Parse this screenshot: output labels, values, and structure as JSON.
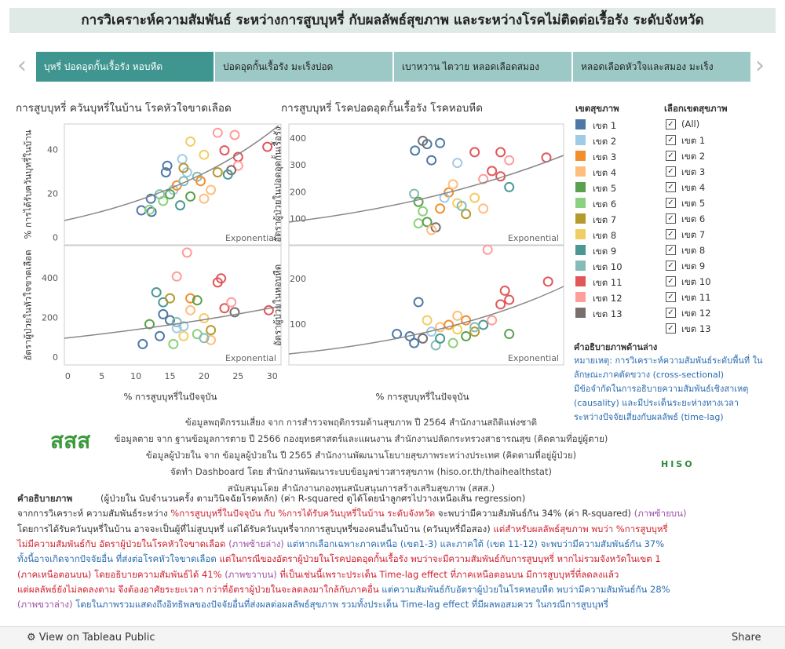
{
  "header": {
    "title": "การวิเคราะห์ความสัมพันธ์ ระหว่างการสูบบุหรี่ กับผลลัพธ์สุขภาพ และระหว่างโรคไม่ติดต่อเรื้อรัง ระดับจังหวัด"
  },
  "tabs": [
    "บุหรี่ ปอดอุดกั้นเรื้อรัง หอบหืด",
    "ปอดอุดกั้นเรื้อรัง มะเร็งปอด",
    "เบาหวาน ไตวาย หลอดเลือดสมอง",
    "หลอดเลือดหัวใจและสมอง มะเร็ง"
  ],
  "legend": {
    "title": "เขตสุขภาพ",
    "items": [
      {
        "name": "เขต 1",
        "color": "#4e79a7"
      },
      {
        "name": "เขต 2",
        "color": "#a0cbe8"
      },
      {
        "name": "เขต 3",
        "color": "#f28e2b"
      },
      {
        "name": "เขต 4",
        "color": "#ffbe7d"
      },
      {
        "name": "เขต 5",
        "color": "#59a14f"
      },
      {
        "name": "เขต 6",
        "color": "#8cd17d"
      },
      {
        "name": "เขต 7",
        "color": "#b6992d"
      },
      {
        "name": "เขต 8",
        "color": "#f1ce63"
      },
      {
        "name": "เขต 9",
        "color": "#499894"
      },
      {
        "name": "เขต 10",
        "color": "#86bcb6"
      },
      {
        "name": "เขต 11",
        "color": "#e15759"
      },
      {
        "name": "เขต 12",
        "color": "#ff9d9a"
      },
      {
        "name": "เขต 13",
        "color": "#79706e"
      }
    ]
  },
  "filter": {
    "title": "เลือกเขตสุขภาพ",
    "options": [
      "(All)",
      "เขต 1",
      "เขต 2",
      "เขต 3",
      "เขต 4",
      "เขต 5",
      "เขต 6",
      "เขต 7",
      "เขต 8",
      "เขต 9",
      "เขต 10",
      "เขต 11",
      "เขต 12",
      "เขต 13"
    ]
  },
  "note": {
    "title": "คำอธิบายภาพด้านล่าง",
    "lines": [
      "หมายเหตุ: การวิเคราะห์ความสัมพันธ์ระดับพื้นที่ ใน",
      "ลักษณะภาคตัดขวาง (cross-sectional)",
      "มีข้อจำกัดในการอธิบายความสัมพันธ์เชิงสาเหตุ",
      "(causality) และมีประเด็นระยะห่างทางเวลา",
      "ระหว่างปัจจัยเสี่ยงกับผลลัพธ์ (time-lag)"
    ]
  },
  "sources": [
    "ข้อมูลพฤติกรรมเสี่ยง จาก การสำรวจพฤติกรรมด้านสุขภาพ ปี 2564 สำนักงานสถิติแห่งชาติ",
    "ข้อมูลตาย จาก ฐานข้อมูลการตาย ปี 2566 กองยุทธศาสตร์และแผนงาน สำนักงานปลัดกระทรวงสาธารณสุข (คิดตามที่อยู่ผู้ตาย)",
    "ข้อมูลผู้ป่วยใน จาก ข้อมูลผู้ป่วยใน ปี 2565 สำนักงานพัฒนานโยบายสุขภาพระหว่างประเทศ (คิดตามที่อยู่ผู้ป่วย)",
    "จัดทำ Dashboard โดย สำนักงานพัฒนาระบบข้อมูลข่าวสารสุขภาพ (hiso.or.th/thaihealthstat)",
    "สนับสนุนโดย สำนักงานกองทุนสนับสนุนการสร้างเสริมสุขภาพ (สสส.)"
  ],
  "logos": [
    "สสส",
    "HISO"
  ],
  "explanation": {
    "title": "คำอธิบายภาพ",
    "lines": [
      [
        [
          "k",
          "(ผู้ป่วยใน นับจำนวนครั้ง ตามวินิจฉัยโรคหลัก) (ค่า R-squared ดูได้โดยนำลูกศรไปวางเหนือเส้น regression)"
        ]
      ],
      [
        [
          "k",
          "จากการวิเคราะห์ ความสัมพันธ์ระหว่าง "
        ],
        [
          "r",
          "%การสูบบุหรี่ในปัจจุบัน กับ %การได้รับควันบุหรี่ในบ้าน ระดับจังหวัด"
        ],
        [
          "k",
          " จะพบว่ามีความสัมพันธ์กัน 34% (ค่า R-squared)"
        ],
        [
          "p",
          " (ภาพซ้ายบน)"
        ]
      ],
      [
        [
          "k",
          "โดยการได้รับควันบุหรี่ในบ้าน อาจจะเป็นผู้ที่ไม่สูบบุหรี่ แต่ได้รับควันบุหรี่จากการสูบบุหรี่ของคนอื่นในบ้าน (ควันบุหรี่มือสอง) "
        ],
        [
          "r",
          "แต่สำหรับผลลัพธ์สุขภาพ พบว่า %การสูบบุหรี่"
        ]
      ],
      [
        [
          "r",
          "ไม่มีความสัมพันธ์กับ อัตราผู้ป่วยในโรคหัวใจขาดเลือด"
        ],
        [
          "p",
          " (ภาพซ้ายล่าง)"
        ],
        [
          "b",
          " แต่หากเลือกเฉพาะภาคเหนือ (เขต1-3) และภาคใต้ (เขต 11-12) จะพบว่ามีความสัมพันธ์กัน 37%"
        ]
      ],
      [
        [
          "b",
          "ทั้งนี้อาจเกิดจากปัจจัยอื่น ที่ส่งต่อโรคหัวใจขาดเลือด"
        ],
        [
          "r",
          " แต่ในกรณีของอัตราผู้ป่วยในโรคปอดอุดกั้นเรื้อรัง พบว่าจะมีความสัมพันธ์กับการสูบบุหรี่ หากไม่รวมจังหวัดในเขต  1"
        ]
      ],
      [
        [
          "r",
          "(ภาคเหนือตอนบน) โดยอธิบายความสัมพันธ์ได้ 41%"
        ],
        [
          "p",
          " (ภาพขวาบน)"
        ],
        [
          "r",
          " ที่เป็นเช่นนี้เพราะประเด็น Time-lag effect ที่ภาคเหนือตอนบน มีการสูบบุหรี่ที่ลดลงแล้ว"
        ]
      ],
      [
        [
          "r",
          "แต่ผลลัพธ์ยังไม่ลดลงตาม จึงต้องอาศัยระยะเวลา กว่าที่อัตราผู้ป่วยในจะลดลงมาใกล้กับภาคอื่น"
        ],
        [
          "b",
          " แต่ความสัมพันธ์กับอัตราผู้ป่วยในโรคหอบหืด พบว่ามีความสัมพันธ์กัน 28%"
        ]
      ],
      [
        [
          "p",
          "(ภาพขวาล่าง)"
        ],
        [
          "b",
          " โดยในภาพรวมแสดงถึงอิทธิพลของปัจจัยอื่นที่ส่งผลต่อผลลัพธ์สุขภาพ รวมทั้งประเด็น Time-lag effect ที่มีผลพอสมควร ในกรณีการสูบบุหรี่"
        ]
      ]
    ]
  },
  "footer": {
    "view": "View on Tableau Public",
    "share": "Share"
  },
  "chart_data": [
    {
      "type": "scatter",
      "title": "การสูบบุหรี่ ควันบุหรี่ในบ้าน โรคหัวใจขาดเลือด",
      "ylabel": "% การได้รับควันบุหรี่ในบ้าน",
      "trend_label": "Exponential",
      "xlim": [
        -0.5,
        31.3
      ],
      "ylim": [
        -3,
        52
      ],
      "yticks": [
        0,
        20,
        40
      ],
      "points": [
        [
          14.6,
          33,
          "เขต 1"
        ],
        [
          14.4,
          30,
          "เขต 1"
        ],
        [
          10.8,
          12.7,
          "เขต 1"
        ],
        [
          12.3,
          12,
          "เขต 1"
        ],
        [
          12.2,
          18,
          "เขต 1"
        ],
        [
          15.5,
          22,
          "เขต 2"
        ],
        [
          16.8,
          36,
          "เขต 2"
        ],
        [
          17.5,
          30,
          "เขต 2"
        ],
        [
          19,
          28,
          "เขต 10"
        ],
        [
          13.5,
          20,
          "เขต 10"
        ],
        [
          14,
          17,
          "เขต 6"
        ],
        [
          16,
          24,
          "เขต 3"
        ],
        [
          17,
          32,
          "เขต 7"
        ],
        [
          18,
          44,
          "เขต 8"
        ],
        [
          20,
          38,
          "เขต 8"
        ],
        [
          21,
          22,
          "เขต 4"
        ],
        [
          19.5,
          26,
          "เขต 3"
        ],
        [
          15,
          20,
          "เขต 5"
        ],
        [
          18,
          19,
          "เขต 5"
        ],
        [
          22,
          48,
          "เขต 12"
        ],
        [
          24.5,
          47,
          "เขต 12"
        ],
        [
          23,
          40,
          "เขต 11"
        ],
        [
          25,
          37,
          "เขต 11"
        ],
        [
          29.3,
          41.6,
          "เขต 11"
        ],
        [
          25,
          33,
          "เขต 12"
        ],
        [
          20,
          18,
          "เขต 4"
        ],
        [
          16.5,
          15,
          "เขต 9"
        ],
        [
          22,
          30,
          "เขต 7"
        ],
        [
          24,
          31,
          "เขต 13"
        ],
        [
          23.5,
          29,
          "เขต 9"
        ],
        [
          12,
          13,
          "เขต 6"
        ],
        [
          17,
          26,
          "เขต 10"
        ]
      ]
    },
    {
      "type": "scatter",
      "ylabel": "อัตราผู้ป่วยในหัวใจขาดเลือด",
      "xlabel": "% การสูบบุหรี่ในปัจจุบัน",
      "trend_label": "Exponential",
      "xlim": [
        -0.5,
        31.3
      ],
      "xticks": [
        0,
        5,
        10,
        15,
        20,
        25,
        30
      ],
      "ylim": [
        -35,
        565
      ],
      "yticks": [
        0,
        200,
        400
      ],
      "points": [
        [
          11,
          70,
          "เขต 1"
        ],
        [
          13.5,
          110,
          "เขต 1"
        ],
        [
          14,
          220,
          "เขต 1"
        ],
        [
          15,
          190,
          "เขต 1"
        ],
        [
          16,
          150,
          "เขต 2"
        ],
        [
          17,
          160,
          "เขต 2"
        ],
        [
          14,
          280,
          "เขต 9"
        ],
        [
          13,
          330,
          "เขต 9"
        ],
        [
          15,
          300,
          "เขต 7"
        ],
        [
          16,
          410,
          "เขต 12"
        ],
        [
          17.5,
          530,
          "เขต 12"
        ],
        [
          18,
          300,
          "เขต 3"
        ],
        [
          19,
          290,
          "เขต 5"
        ],
        [
          20,
          200,
          "เขต 8"
        ],
        [
          21,
          90,
          "เขต 4"
        ],
        [
          19,
          120,
          "เขต 6"
        ],
        [
          17,
          110,
          "เขต 8"
        ],
        [
          15.5,
          70,
          "เขต 6"
        ],
        [
          22,
          380,
          "เขต 11"
        ],
        [
          23,
          250,
          "เขต 11"
        ],
        [
          24,
          280,
          "เขต 12"
        ],
        [
          22.5,
          400,
          "เขต 11"
        ],
        [
          24.5,
          230,
          "เขต 13"
        ],
        [
          29.5,
          240,
          "เขต 11"
        ],
        [
          20,
          100,
          "เขต 10"
        ],
        [
          18,
          240,
          "เขต 4"
        ],
        [
          16,
          180,
          "เขต 10"
        ],
        [
          21,
          140,
          "เขต 7"
        ],
        [
          12,
          170,
          "เขต 5"
        ]
      ]
    },
    {
      "type": "scatter",
      "title": "การสูบบุหรี่ โรคปอดอุดกั้นเรื้อรัง โรคหอบหืด",
      "ylabel": "อัตราผู้ป่วยในปอดอุดกั้นเรื้อรัง",
      "trend_label": "Exponential",
      "xlim": [
        -0.5,
        31.3
      ],
      "ylim": [
        5,
        455
      ],
      "yticks": [
        100,
        200,
        300,
        400
      ],
      "points": [
        [
          14.1,
          356,
          "เขต 1"
        ],
        [
          15.5,
          380,
          "เขต 1"
        ],
        [
          17,
          384,
          "เขต 1"
        ],
        [
          15,
          392,
          "เขต 13"
        ],
        [
          16,
          320,
          "เขต 1"
        ],
        [
          19,
          310,
          "เขต 2"
        ],
        [
          14,
          195,
          "เขต 10"
        ],
        [
          14.5,
          165,
          "เขต 5"
        ],
        [
          15,
          130,
          "เขต 6"
        ],
        [
          14.5,
          85,
          "เขต 6"
        ],
        [
          15.5,
          90,
          "เขต 5"
        ],
        [
          16.5,
          70,
          "เขต 13"
        ],
        [
          16,
          60,
          "เขต 4"
        ],
        [
          17,
          140,
          "เขต 3"
        ],
        [
          18,
          200,
          "เขต 3"
        ],
        [
          18.5,
          230,
          "เขต 4"
        ],
        [
          19,
          160,
          "เขต 8"
        ],
        [
          20,
          120,
          "เขต 7"
        ],
        [
          21,
          180,
          "เขต 8"
        ],
        [
          19.5,
          150,
          "เขต 10"
        ],
        [
          22,
          250,
          "เขต 12"
        ],
        [
          23,
          280,
          "เขต 11"
        ],
        [
          24,
          350,
          "เขต 11"
        ],
        [
          25,
          320,
          "เขต 12"
        ],
        [
          24,
          260,
          "เขต 11"
        ],
        [
          29.3,
          330,
          "เขต 11"
        ],
        [
          25,
          220,
          "เขต 9"
        ],
        [
          21,
          350,
          "เขต 11"
        ],
        [
          17.5,
          180,
          "เขต 2"
        ],
        [
          22,
          140,
          "เขต 4"
        ]
      ]
    },
    {
      "type": "scatter",
      "ylabel": "อัตราผู้ป่วยในหอบหืด",
      "xlabel": "% การสูบบุหรี่ในปัจจุบัน",
      "trend_label": "Exponential",
      "xlim": [
        -0.5,
        31.3
      ],
      "ylim": [
        12,
        274
      ],
      "yticks": [
        100,
        200
      ],
      "points": [
        [
          12,
          80,
          "เขต 1"
        ],
        [
          13.5,
          75,
          "เขต 1"
        ],
        [
          14,
          60,
          "เขต 1"
        ],
        [
          14.5,
          150,
          "เขต 1"
        ],
        [
          15,
          70,
          "เขต 13"
        ],
        [
          16,
          85,
          "เขต 2"
        ],
        [
          17,
          95,
          "เขต 4"
        ],
        [
          18,
          100,
          "เขต 3"
        ],
        [
          19,
          90,
          "เขต 8"
        ],
        [
          20,
          75,
          "เขต 5"
        ],
        [
          18.5,
          60,
          "เขต 6"
        ],
        [
          16.5,
          55,
          "เขต 10"
        ],
        [
          21,
          85,
          "เขต 7"
        ],
        [
          20,
          110,
          "เขต 3"
        ],
        [
          22,
          100,
          "เขต 9"
        ],
        [
          24,
          145,
          "เขต 11"
        ],
        [
          25,
          155,
          "เขต 11"
        ],
        [
          24.5,
          175,
          "เขต 11"
        ],
        [
          29.5,
          195,
          "เขต 11"
        ],
        [
          22.5,
          265,
          "เขต 12"
        ],
        [
          23,
          110,
          "เขต 12"
        ],
        [
          25,
          80,
          "เขต 5"
        ],
        [
          19,
          120,
          "เขต 4"
        ],
        [
          17,
          70,
          "เขต 9"
        ],
        [
          15.5,
          110,
          "เขต 8"
        ],
        [
          21,
          95,
          "เขต 10"
        ]
      ]
    }
  ]
}
